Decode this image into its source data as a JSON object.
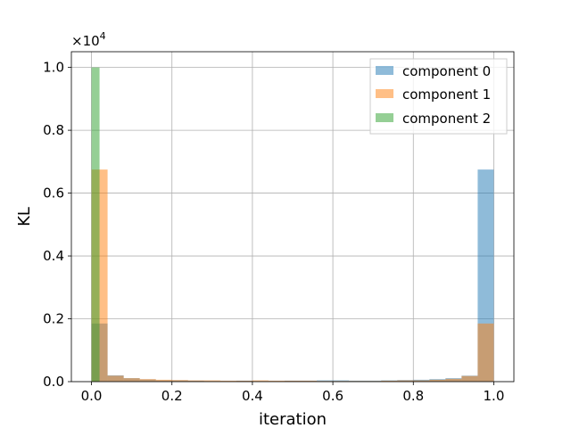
{
  "chart_data": {
    "type": "bar",
    "subtype": "overlapping-histogram",
    "xlabel": "iteration",
    "ylabel": "KL",
    "y_offset_label": "×10",
    "y_offset_exponent": "4",
    "xlim": [
      -0.05,
      1.05
    ],
    "ylim": [
      0,
      10500
    ],
    "grid": true,
    "legend_position": "top-right",
    "bin_edges": [
      0,
      0.04,
      0.08,
      0.12,
      0.16,
      0.2,
      0.24,
      0.28,
      0.32,
      0.36,
      0.4,
      0.44,
      0.48,
      0.52,
      0.56,
      0.6,
      0.64,
      0.68,
      0.72,
      0.76,
      0.8,
      0.84,
      0.88,
      0.92,
      0.96,
      1.0
    ],
    "x_ticks": [
      "0.0",
      "0.2",
      "0.4",
      "0.6",
      "0.8",
      "1.0"
    ],
    "x_tick_values": [
      0,
      0.2,
      0.4,
      0.6,
      0.8,
      1.0
    ],
    "y_ticks": [
      "0.0",
      "0.2",
      "0.4",
      "0.6",
      "0.8",
      "1.0"
    ],
    "y_tick_values": [
      0,
      2000,
      4000,
      6000,
      8000,
      10000
    ],
    "series": [
      {
        "name": "component 0",
        "color": "#1f77b4",
        "values": [
          1850,
          200,
          110,
          70,
          40,
          40,
          30,
          20,
          20,
          30,
          20,
          20,
          30,
          30,
          40,
          40,
          30,
          30,
          40,
          50,
          60,
          80,
          110,
          190,
          6750
        ],
        "x_start": [
          0,
          0.04,
          0.08,
          0.12,
          0.16,
          0.2,
          0.24,
          0.28,
          0.32,
          0.36,
          0.4,
          0.44,
          0.48,
          0.52,
          0.56,
          0.6,
          0.64,
          0.68,
          0.72,
          0.76,
          0.8,
          0.84,
          0.88,
          0.92,
          0.96
        ]
      },
      {
        "name": "component 1",
        "color": "#ff7f0e",
        "values": [
          6750,
          190,
          110,
          80,
          60,
          50,
          40,
          40,
          30,
          30,
          40,
          30,
          30,
          30,
          20,
          20,
          20,
          20,
          30,
          40,
          40,
          60,
          90,
          180,
          1850
        ],
        "x_start": [
          0,
          0.04,
          0.08,
          0.12,
          0.16,
          0.2,
          0.24,
          0.28,
          0.32,
          0.36,
          0.4,
          0.44,
          0.48,
          0.52,
          0.56,
          0.6,
          0.64,
          0.68,
          0.72,
          0.76,
          0.8,
          0.84,
          0.88,
          0.92,
          0.96
        ]
      },
      {
        "name": "component 2",
        "color": "#2ca02c",
        "values": [
          10000
        ],
        "x_start": [
          0
        ],
        "bin_width": 0.02
      }
    ]
  }
}
